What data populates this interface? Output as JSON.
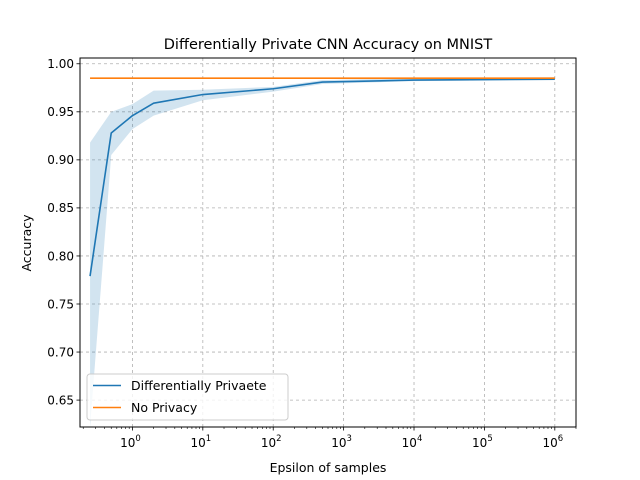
{
  "chart_data": {
    "type": "line",
    "title": "Differentially Private CNN Accuracy on MNIST",
    "xlabel": "Epsilon of samples",
    "ylabel": "Accuracy",
    "xscale": "log",
    "xlim": [
      0.18,
      2000000
    ],
    "ylim": [
      0.622,
      1.006
    ],
    "x_ticks": [
      {
        "value": 1,
        "base": "10",
        "exp": "0"
      },
      {
        "value": 10,
        "base": "10",
        "exp": "1"
      },
      {
        "value": 100,
        "base": "10",
        "exp": "2"
      },
      {
        "value": 1000,
        "base": "10",
        "exp": "3"
      },
      {
        "value": 10000,
        "base": "10",
        "exp": "4"
      },
      {
        "value": 100000,
        "base": "10",
        "exp": "5"
      },
      {
        "value": 1000000,
        "base": "10",
        "exp": "6"
      }
    ],
    "y_ticks": [
      {
        "value": 0.65,
        "label": "0.65"
      },
      {
        "value": 0.7,
        "label": "0.70"
      },
      {
        "value": 0.75,
        "label": "0.75"
      },
      {
        "value": 0.8,
        "label": "0.80"
      },
      {
        "value": 0.85,
        "label": "0.85"
      },
      {
        "value": 0.9,
        "label": "0.90"
      },
      {
        "value": 0.95,
        "label": "0.95"
      },
      {
        "value": 1.0,
        "label": "1.00"
      }
    ],
    "grid": true,
    "legend_position": "lower-left",
    "series": [
      {
        "name": "Differentially Privaete",
        "color": "#1f77b4",
        "x": [
          0.25,
          0.5,
          1,
          2,
          10,
          100,
          500,
          10000,
          1000000
        ],
        "y": [
          0.779,
          0.928,
          0.946,
          0.959,
          0.968,
          0.974,
          0.981,
          0.983,
          0.984
        ],
        "band_color": "#1f77b4",
        "band_lower": [
          0.622,
          0.905,
          0.932,
          0.946,
          0.962,
          0.971,
          0.979,
          0.982,
          0.983
        ],
        "band_upper": [
          0.918,
          0.95,
          0.958,
          0.972,
          0.973,
          0.976,
          0.983,
          0.985,
          0.986
        ]
      },
      {
        "name": "No Privacy",
        "color": "#ff7f0e",
        "x": [
          0.25,
          1000000
        ],
        "y": [
          0.985,
          0.985
        ]
      }
    ]
  }
}
